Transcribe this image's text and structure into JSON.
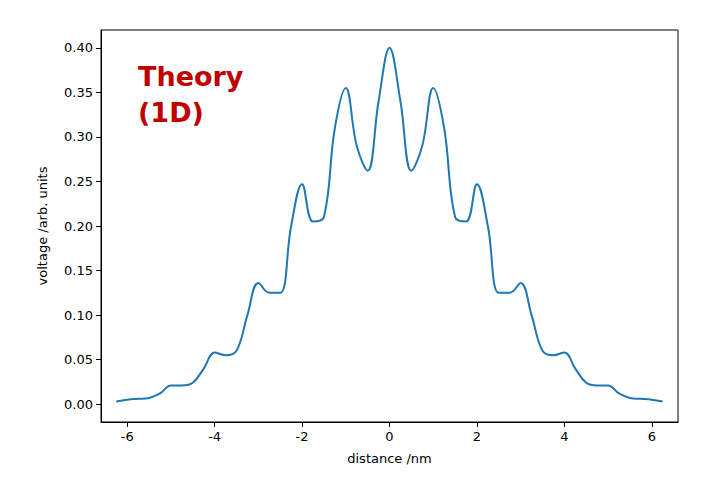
{
  "chart_data": {
    "type": "line",
    "annotation": "Theory\n(1D)",
    "xlabel": "distance /nm",
    "ylabel": "voltage /arb. units",
    "x": [
      -6.25,
      -6.0,
      -5.75,
      -5.5,
      -5.25,
      -5.0,
      -4.75,
      -4.5,
      -4.25,
      -4.0,
      -3.75,
      -3.5,
      -3.25,
      -3.0,
      -2.75,
      -2.5,
      -2.25,
      -2.0,
      -1.75,
      -1.5,
      -1.25,
      -1.0,
      -0.75,
      -0.5,
      -0.25,
      0.0,
      0.25,
      0.5,
      0.75,
      1.0,
      1.25,
      1.5,
      1.75,
      2.0,
      2.25,
      2.5,
      2.75,
      3.0,
      3.25,
      3.5,
      3.75,
      4.0,
      4.25,
      4.5,
      4.75,
      5.0,
      5.25,
      5.5,
      5.75,
      6.0,
      6.25
    ],
    "values": [
      0.003,
      0.005,
      0.006,
      0.007,
      0.012,
      0.021,
      0.021,
      0.024,
      0.04,
      0.058,
      0.055,
      0.06,
      0.1,
      0.136,
      0.125,
      0.125,
      0.2,
      0.247,
      0.205,
      0.21,
      0.31,
      0.355,
      0.29,
      0.262,
      0.34,
      0.4,
      0.34,
      0.262,
      0.29,
      0.355,
      0.31,
      0.21,
      0.205,
      0.247,
      0.2,
      0.125,
      0.125,
      0.136,
      0.1,
      0.06,
      0.055,
      0.058,
      0.04,
      0.024,
      0.021,
      0.021,
      0.012,
      0.007,
      0.006,
      0.005,
      0.003
    ],
    "color": "#1f77b4",
    "xlim": [
      -6.6,
      6.6
    ],
    "xticks": [
      -6,
      -4,
      -2,
      0,
      2,
      4,
      6
    ],
    "ylim": [
      -0.02,
      0.42
    ],
    "yticks": [
      {
        "value": 0,
        "label": "0.00"
      },
      0.05,
      {
        "value": 0.1,
        "label": "0.10"
      },
      0.15,
      {
        "value": 0.2,
        "label": "0.20"
      },
      0.25,
      {
        "value": 0.3,
        "label": "0.30"
      },
      0.35,
      {
        "value": 0.4,
        "label": "0.40"
      }
    ],
    "grid": false
  }
}
